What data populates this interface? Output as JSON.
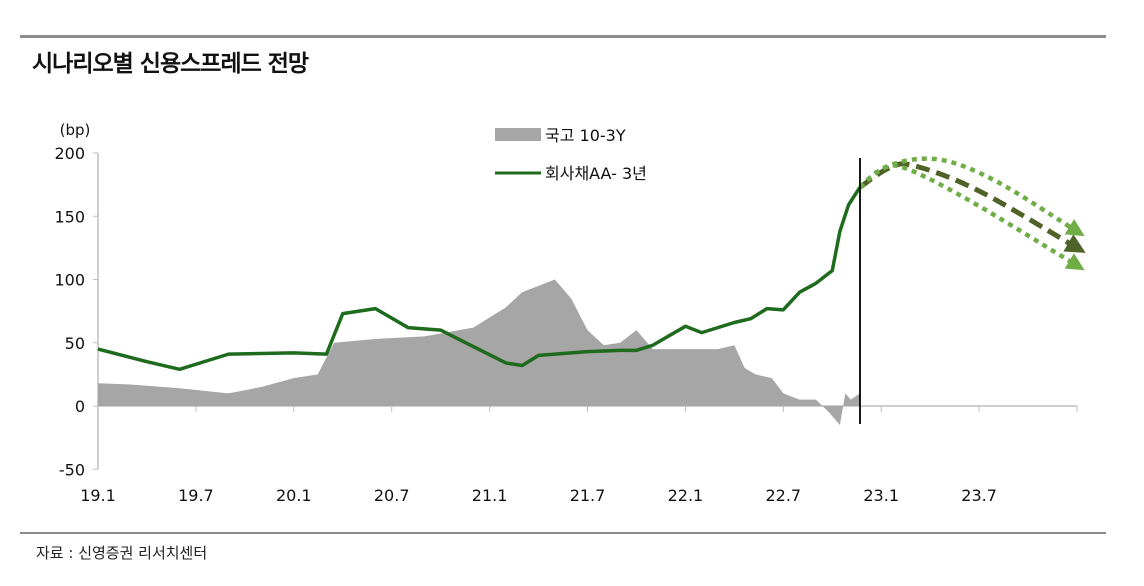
{
  "title": "시나리오별 신용스프레드 전망",
  "source": "자료 : 신영증권 리서치센터",
  "chart_data": {
    "type": "line",
    "title": "시나리오별 신용스프레드 전망",
    "ylabel": "(bp)",
    "ylim": [
      -50,
      200
    ],
    "yticks": [
      "200",
      "150",
      "100",
      "50",
      "0",
      "-50"
    ],
    "ytick_values": [
      200,
      150,
      100,
      50,
      0,
      -50
    ],
    "xlim": [
      "2019-01-01",
      "2024-01-01"
    ],
    "xticks": [
      "19.1",
      "19.7",
      "20.1",
      "20.7",
      "21.1",
      "21.7",
      "22.1",
      "22.7",
      "23.1",
      "23.7"
    ],
    "xtick_dates": [
      "2019-01-01",
      "2019-07-01",
      "2020-01-01",
      "2020-07-01",
      "2021-01-01",
      "2021-07-01",
      "2022-01-01",
      "2022-07-01",
      "2023-01-01",
      "2023-07-01",
      "2024-01-01"
    ],
    "grid": false,
    "legend": "top-center",
    "divider_date": "2022-11-22",
    "series": [
      {
        "name": "국고 10-3Y",
        "kind": "area",
        "color": "#a6a6a6",
        "x": [
          "2019-01-01",
          "2019-03-01",
          "2019-06-01",
          "2019-09-01",
          "2019-11-01",
          "2020-01-01",
          "2020-02-15",
          "2020-03-15",
          "2020-06-01",
          "2020-09-01",
          "2020-12-01",
          "2021-02-01",
          "2021-03-01",
          "2021-04-01",
          "2021-05-01",
          "2021-06-01",
          "2021-07-01",
          "2021-08-01",
          "2021-09-01",
          "2021-10-01",
          "2021-11-01",
          "2022-01-01",
          "2022-03-01",
          "2022-04-01",
          "2022-04-20",
          "2022-05-10",
          "2022-06-10",
          "2022-07-01",
          "2022-08-01",
          "2022-09-01",
          "2022-09-25",
          "2022-10-15",
          "2022-10-25",
          "2022-11-05",
          "2022-11-22"
        ],
        "values": [
          18,
          17,
          14,
          10,
          15,
          22,
          25,
          50,
          53,
          55,
          62,
          78,
          90,
          95,
          100,
          85,
          60,
          48,
          50,
          60,
          45,
          45,
          45,
          48,
          30,
          25,
          22,
          10,
          5,
          5,
          -5,
          -15,
          10,
          5,
          10
        ]
      },
      {
        "name": "회사채AA- 3년",
        "kind": "line",
        "color": "#1e6b1e",
        "x": [
          "2019-01-01",
          "2019-04-01",
          "2019-06-01",
          "2019-07-01",
          "2019-09-01",
          "2020-01-01",
          "2020-03-01",
          "2020-04-01",
          "2020-06-01",
          "2020-08-01",
          "2020-10-01",
          "2020-12-01",
          "2021-02-01",
          "2021-03-01",
          "2021-04-01",
          "2021-06-01",
          "2021-07-01",
          "2021-09-01",
          "2021-10-01",
          "2021-11-01",
          "2022-01-01",
          "2022-02-01",
          "2022-04-01",
          "2022-05-01",
          "2022-06-01",
          "2022-07-01",
          "2022-08-01",
          "2022-09-01",
          "2022-10-01",
          "2022-10-15",
          "2022-11-01",
          "2022-11-22"
        ],
        "values": [
          45,
          35,
          29,
          33,
          41,
          42,
          41,
          73,
          77,
          62,
          60,
          47,
          34,
          32,
          40,
          42,
          43,
          44,
          44,
          48,
          63,
          58,
          66,
          69,
          77,
          76,
          90,
          97,
          107,
          138,
          159,
          173
        ]
      },
      {
        "name": "",
        "kind": "forecast-base",
        "color": "#4f6228",
        "style": "dashed",
        "x": [
          "2022-11-22",
          "2023-01-15",
          "2023-03-01",
          "2023-07-01",
          "2024-01-01"
        ],
        "values": [
          173,
          188,
          190,
          170,
          125
        ]
      },
      {
        "name": "",
        "kind": "forecast-upper",
        "color": "#70ad47",
        "style": "dotted",
        "x": [
          "2022-11-22",
          "2023-01-15",
          "2023-04-15",
          "2023-08-01",
          "2024-01-01"
        ],
        "values": [
          173,
          190,
          195,
          178,
          138
        ]
      },
      {
        "name": "",
        "kind": "forecast-lower",
        "color": "#70ad47",
        "style": "dotted",
        "x": [
          "2022-11-22",
          "2023-01-01",
          "2023-02-15",
          "2023-06-15",
          "2024-01-01"
        ],
        "values": [
          173,
          187,
          188,
          162,
          111
        ]
      }
    ]
  }
}
